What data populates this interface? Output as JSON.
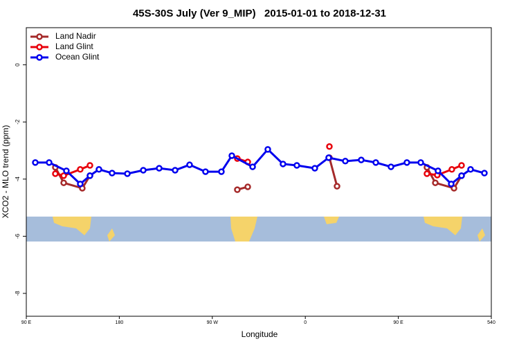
{
  "chart_data": {
    "type": "line",
    "title": "45S-30S July (Ver 9_MIP)   2015-01-01 to 2018-12-31",
    "x_label": "Longitude",
    "y_label": "XCO2 - MLO trend (ppm)",
    "xlim": [
      90,
      540
    ],
    "xticks": [
      {
        "value": 90,
        "label": "90 E"
      },
      180,
      {
        "value": 270,
        "label": "90 W"
      },
      {
        "value": 360,
        "label": "0"
      },
      {
        "value": 450,
        "label": "90 E"
      },
      540
    ],
    "ylim": [
      -8.8,
      1.3
    ],
    "yticks": [
      0,
      -2,
      -4,
      -6,
      -8
    ],
    "legend": "top-left",
    "series": [
      {
        "name": "Land Nadir",
        "color": "#a52a2a",
        "x": [
          118.1,
          126.2,
          144.2,
          151.6,
          null,
          294.2,
          304.3,
          null,
          383.3,
          390.7,
          null,
          477.7,
          485.8,
          503.9,
          511.2
        ],
        "values": [
          -3.59,
          -4.13,
          -4.32,
          -3.88,
          null,
          -4.37,
          -4.27,
          null,
          -3.25,
          -4.25,
          null,
          -3.59,
          -4.13,
          -4.32,
          -3.88
        ]
      },
      {
        "name": "Land Glint",
        "color": "#e8000b",
        "x": [
          118.1,
          126.2,
          142.2,
          151.6,
          null,
          294.2,
          304.3,
          null,
          383.3,
          null,
          477.7,
          487.7,
          501.8,
          511.2
        ],
        "values": [
          -3.81,
          -3.88,
          -3.66,
          -3.52,
          null,
          -3.28,
          -3.4,
          null,
          -2.86,
          null,
          -3.81,
          -3.86,
          -3.66,
          -3.52
        ]
      },
      {
        "name": "Ocean Glint",
        "color": "#0000ee",
        "x": [
          98.7,
          112.1,
          128.8,
          142.2,
          151.6,
          160.3,
          173,
          187.8,
          203.2,
          218.6,
          234,
          248,
          263.4,
          278.8,
          288.9,
          309,
          323.7,
          338.4,
          351.8,
          369.2,
          382.6,
          398.7,
          414.1,
          428.2,
          442.9,
          458.3,
          471.7,
          488.4,
          501.2,
          511.2,
          519.9,
          533.3
        ],
        "values": [
          -3.42,
          -3.42,
          -3.71,
          -4.17,
          -3.88,
          -3.66,
          -3.79,
          -3.81,
          -3.69,
          -3.62,
          -3.69,
          -3.5,
          -3.74,
          -3.74,
          -3.18,
          -3.57,
          -2.96,
          -3.47,
          -3.52,
          -3.62,
          -3.25,
          -3.37,
          -3.33,
          -3.42,
          -3.57,
          -3.42,
          -3.42,
          -3.71,
          -4.17,
          -3.88,
          -3.66,
          -3.79
        ]
      }
    ]
  }
}
